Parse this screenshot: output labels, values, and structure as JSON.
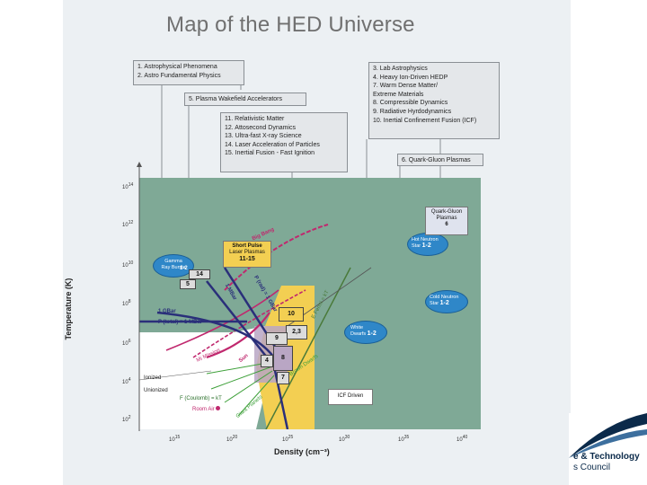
{
  "title": "Map of the HED Universe",
  "legend_left": [
    "1.  Astrophysical Phenomena",
    "2.  Astro Fundamental Physics"
  ],
  "legend_plasma": "5.  Plasma Wakefield Accelerators",
  "legend_mid": [
    "11.  Relativistic Matter",
    "12.  Attosecond Dynamics",
    "13.  Ultra-fast X-ray Science",
    "14.  Laser Acceleration of Particles",
    "15.  Inertial Fusion - Fast Ignition"
  ],
  "legend_right": [
    "3.  Lab Astrophysics",
    "4.  Heavy Ion-Driven HEDP",
    "7.  Warm Dense Matter/",
    "      Extreme Materials",
    "8.  Compressible Dynamics",
    "9.  Radiative Hyrdodynamics",
    "10.  Inertial Confinement Fusion (ICF)"
  ],
  "legend_qgp": "6.  Quark-Gluon Plasmas",
  "axes": {
    "ylabel": "Temperature (K)",
    "xlabel": "Density (cm⁻³)",
    "y_ticks": [
      {
        "base": "10",
        "exp": "14"
      },
      {
        "base": "10",
        "exp": "12"
      },
      {
        "base": "10",
        "exp": "10"
      },
      {
        "base": "10",
        "exp": "8"
      },
      {
        "base": "10",
        "exp": "6"
      },
      {
        "base": "10",
        "exp": "4"
      },
      {
        "base": "10",
        "exp": "2"
      }
    ],
    "x_ticks": [
      {
        "base": "10",
        "exp": "15"
      },
      {
        "base": "10",
        "exp": "20"
      },
      {
        "base": "10",
        "exp": "25"
      },
      {
        "base": "10",
        "exp": "30"
      },
      {
        "base": "10",
        "exp": "35"
      },
      {
        "base": "10",
        "exp": "40"
      }
    ]
  },
  "plot_labels": {
    "gamma": {
      "line1": "Gamma",
      "line2": "Ray Bursts",
      "num": "1-2"
    },
    "hot_neutron": {
      "line1": "Hot Neutron",
      "line2": "Star",
      "num": "1-2"
    },
    "cold_neutron": {
      "line1": "Cold Neutron",
      "line2": "Star",
      "num": "1-2"
    },
    "white_dwarfs": {
      "line1": "White",
      "line2": "Dwarfs",
      "num": "1-2"
    },
    "qgp_box": {
      "line1": "Quark-Gluon",
      "line2": "Plasmas",
      "num": "6"
    },
    "short_pulse": {
      "line1": "Short Pulse",
      "line2": "Laser Plasmas",
      "num": "11-15"
    },
    "icf_driven": "ICF Driven",
    "big_bang": "Big Bang",
    "mbar_1": "1 MBar",
    "gbar_1": "1 GBar",
    "p_total": "P (total) = 1 MBar",
    "p_rad": "P (rad) = 1 GBar",
    "efermi": "E Fermi = kT",
    "ionized": "Ionized",
    "unionized": "Unionized",
    "f_coulomb": "F (Coulomb) = kT",
    "room_air": "Room Air",
    "sun_core": "Sun",
    "brown_dwarfs": "Brown Dwarfs",
    "giant_planets": "Giant Planets",
    "mw_laser": "Mi Mission",
    "sq14": "14",
    "sq5": "5",
    "sq10": "10",
    "sq23": "2,3",
    "sq9": "9",
    "sq8": "8",
    "sq4": "4",
    "sq7": "7"
  },
  "brand": {
    "line1": "e & Technology",
    "line2": "s Council"
  }
}
